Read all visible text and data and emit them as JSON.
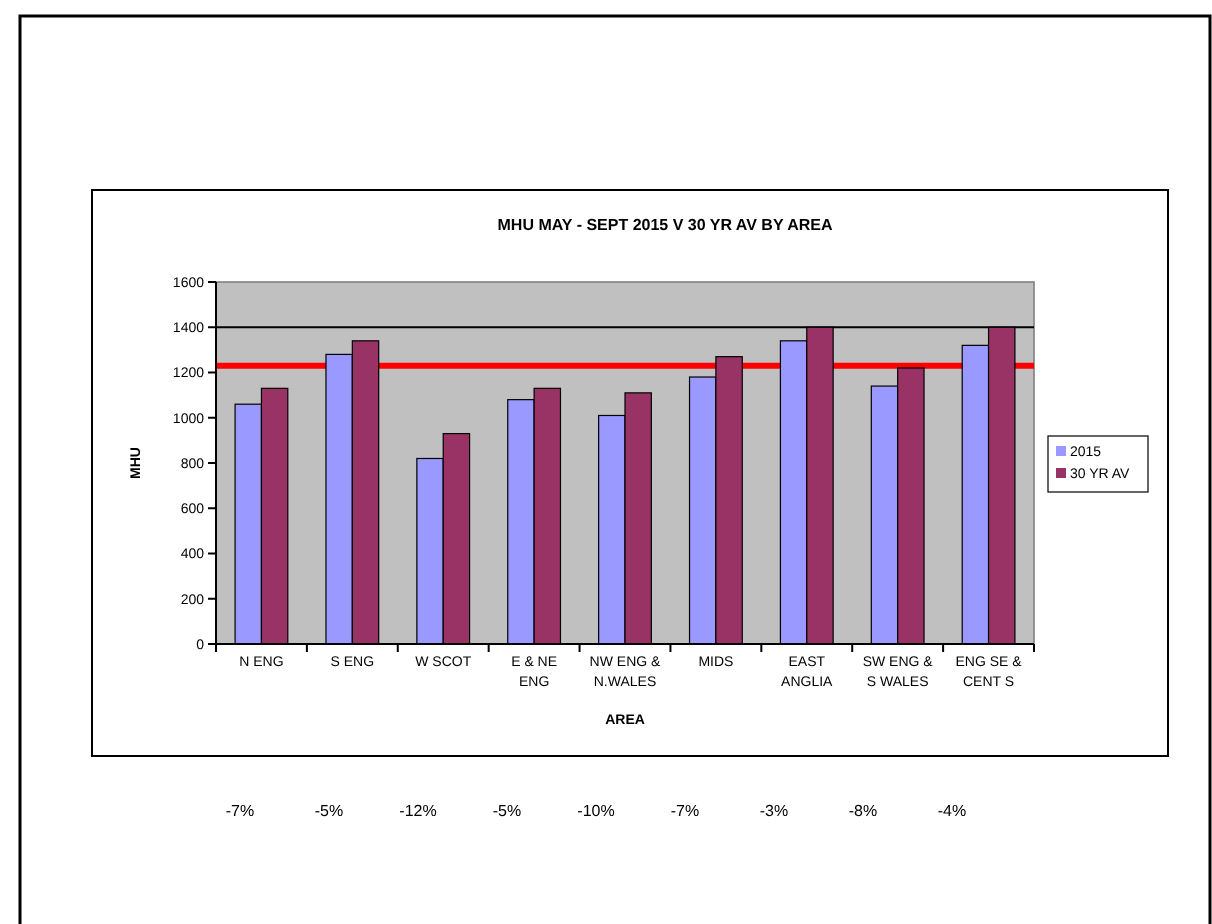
{
  "chart_data": {
    "type": "bar",
    "title": "MHU MAY - SEPT 2015 V 30 YR AV BY AREA",
    "xlabel": "AREA",
    "ylabel": "MHU",
    "categories": [
      "N ENG",
      "S ENG",
      "W SCOT",
      "E & NE\nENG",
      "NW ENG &\nN.WALES",
      "MIDS",
      "EAST\nANGLIA",
      "SW ENG &\nS WALES",
      "ENG SE &\nCENT S"
    ],
    "series": [
      {
        "name": "2015",
        "color": "#9999ff",
        "values": [
          1060,
          1280,
          820,
          1080,
          1010,
          1180,
          1340,
          1140,
          1320
        ]
      },
      {
        "name": "30 YR AV",
        "color": "#993366",
        "values": [
          1130,
          1340,
          930,
          1130,
          1110,
          1270,
          1400,
          1220,
          1400
        ]
      }
    ],
    "ylim": [
      0,
      1600
    ],
    "yticks": [
      0,
      200,
      400,
      600,
      800,
      1000,
      1200,
      1400,
      1600
    ],
    "ref_lines": [
      {
        "axis": "y",
        "value": 1400,
        "color": "#000000"
      },
      {
        "axis": "y",
        "value": 1230,
        "color": "#ff0000"
      }
    ],
    "legend": "right",
    "annotations": [
      "-7%",
      "-5%",
      "-12%",
      "-5%",
      "-10%",
      "-7%",
      "-3%",
      "-8%",
      "-4%"
    ]
  }
}
